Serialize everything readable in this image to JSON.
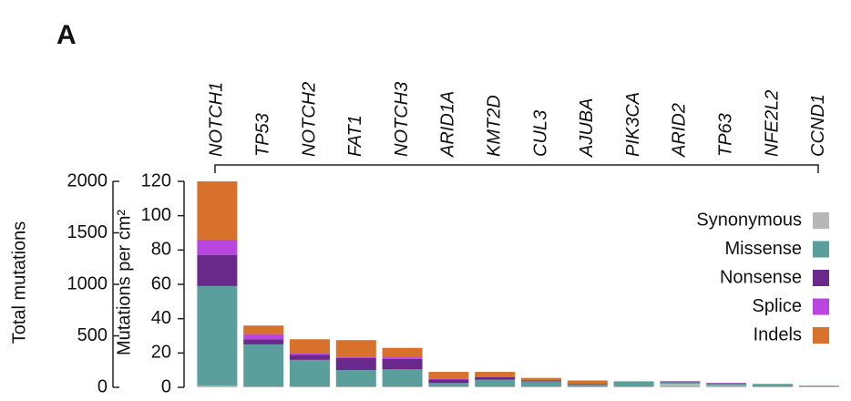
{
  "chart_data": {
    "type": "stacked_bar",
    "panel_label": "A",
    "ylabel": "Mutations per cm²",
    "y2label": "Total mutations",
    "categories": [
      "NOTCH1",
      "TP53",
      "NOTCH2",
      "FAT1",
      "NOTCH3",
      "ARID1A",
      "KMT2D",
      "CUL3",
      "AJUBA",
      "PIK3CA",
      "ARID2",
      "TP63",
      "NFE2L2",
      "CCND1"
    ],
    "series": [
      {
        "name": "Synonymous",
        "color": "#b7b7b7",
        "values": [
          1,
          0.5,
          0.5,
          0.5,
          0.5,
          0.5,
          0.5,
          0.5,
          0.5,
          0.5,
          2,
          1,
          0.5,
          0.5
        ]
      },
      {
        "name": "Missense",
        "color": "#5b9f9c",
        "values": [
          58,
          24.5,
          15.5,
          9.5,
          10,
          2,
          4,
          3,
          1,
          3,
          1,
          1,
          1.5,
          0.5
        ]
      },
      {
        "name": "Nonsense",
        "color": "#69298b",
        "values": [
          18,
          3,
          3,
          7,
          6,
          2,
          1.5,
          0.5,
          0.5,
          0,
          0.5,
          0.5,
          0,
          0
        ]
      },
      {
        "name": "Splice",
        "color": "#b846df",
        "values": [
          9,
          3,
          1,
          0.5,
          1,
          0.5,
          0,
          0,
          0,
          0,
          0,
          0,
          0,
          0
        ]
      },
      {
        "name": "Indels",
        "color": "#d8712b",
        "values": [
          34,
          5,
          8,
          10,
          5.5,
          4,
          3,
          1.5,
          2,
          0,
          0,
          0,
          0,
          0
        ]
      }
    ],
    "ylim": [
      0,
      120
    ],
    "yticks": [
      0,
      20,
      40,
      60,
      80,
      100,
      120
    ],
    "y2lim": [
      0,
      2000
    ],
    "y2ticks": [
      0,
      500,
      1000,
      1500,
      2000
    ],
    "legend": "right"
  }
}
